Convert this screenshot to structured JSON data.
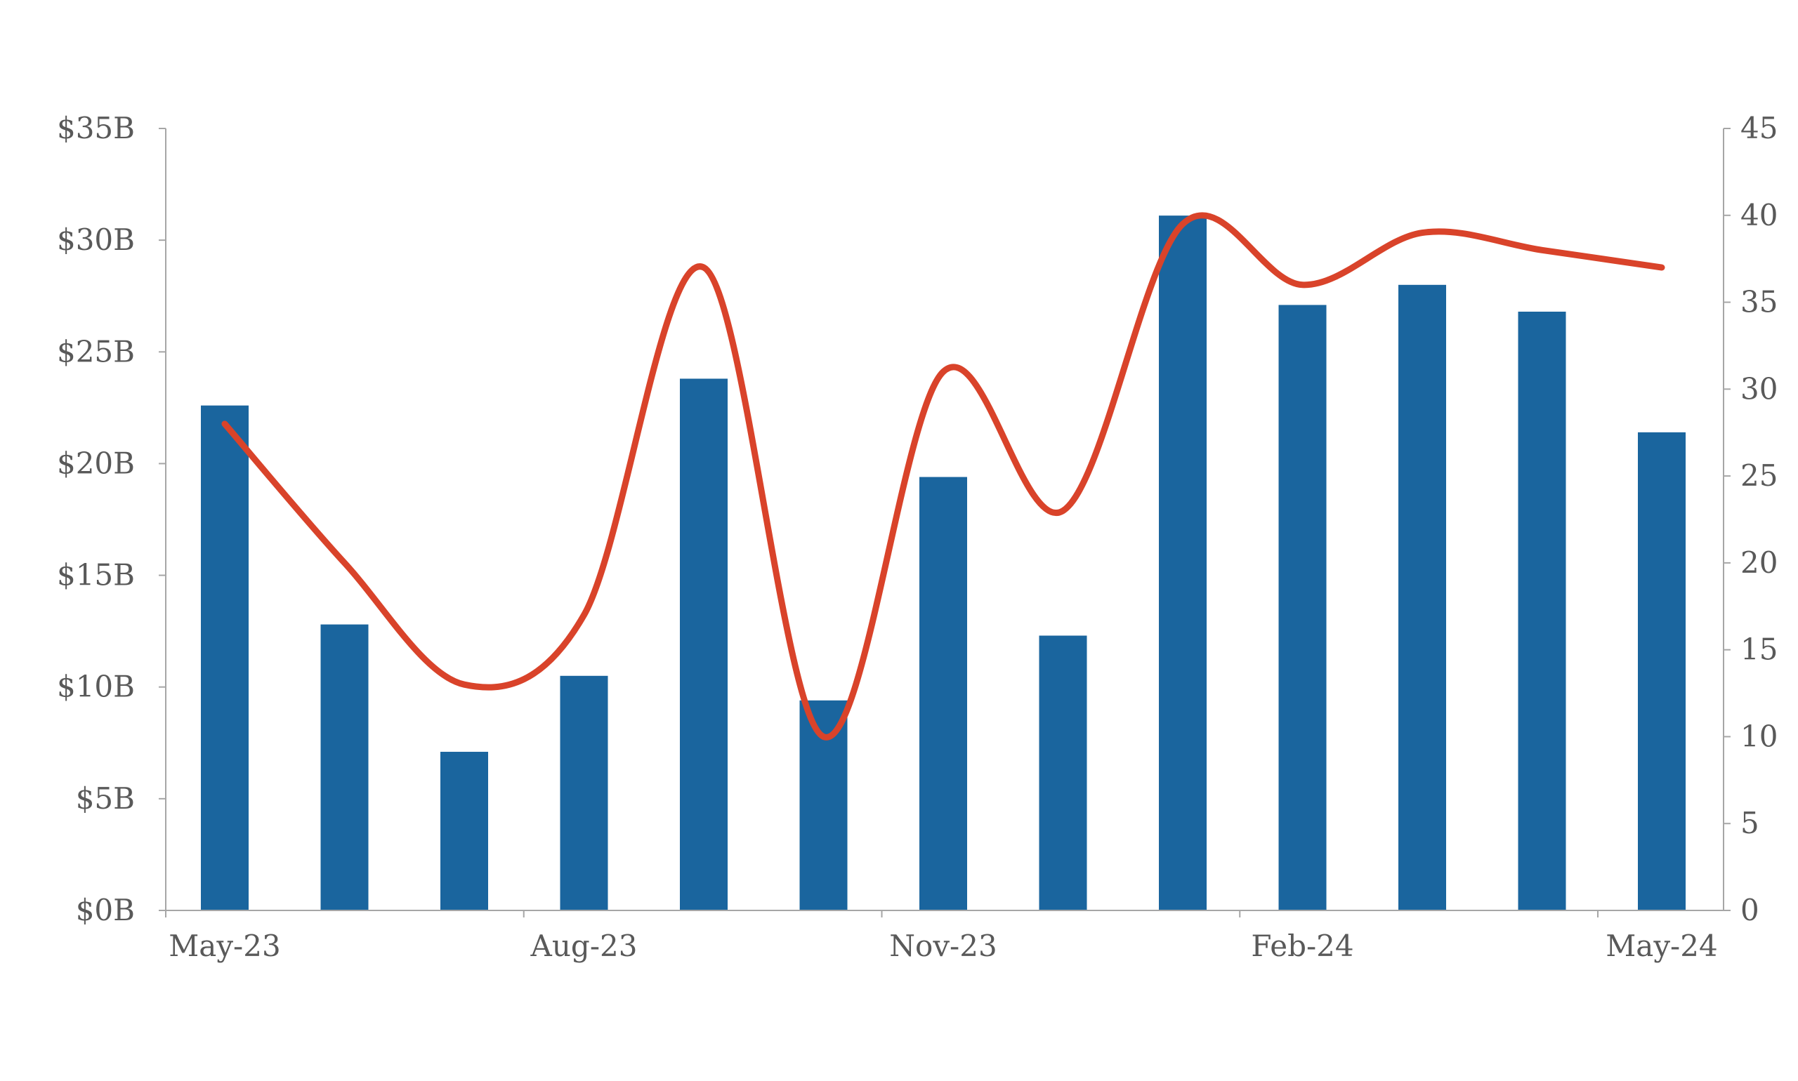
{
  "chart_data": {
    "type": "bar",
    "categories": [
      "May-23",
      "Jun-23",
      "Jul-23",
      "Aug-23",
      "Sep-23",
      "Oct-23",
      "Nov-23",
      "Dec-23",
      "Jan-24",
      "Feb-24",
      "Mar-24",
      "Apr-24",
      "May-24"
    ],
    "x_tick_labels": [
      "May-23",
      "Aug-23",
      "Nov-23",
      "Feb-24",
      "May-24"
    ],
    "series": [
      {
        "type": "bar",
        "axis": "left",
        "color": "#1a659e",
        "values": [
          22.6,
          12.8,
          7.1,
          10.5,
          23.8,
          9.4,
          19.4,
          12.3,
          31.1,
          27.1,
          28.0,
          26.8,
          21.4
        ]
      },
      {
        "type": "line",
        "axis": "right",
        "color": "#d9432a",
        "smooth": true,
        "values": [
          28,
          20,
          13,
          17,
          37,
          10,
          31,
          23,
          39.5,
          36,
          39,
          38,
          37
        ]
      }
    ],
    "y_left": {
      "ylim": [
        0,
        35
      ],
      "ticks": [
        0,
        5,
        10,
        15,
        20,
        25,
        30,
        35
      ],
      "tick_labels": [
        "$0B",
        "$5B",
        "$10B",
        "$15B",
        "$20B",
        "$25B",
        "$30B",
        "$35B"
      ]
    },
    "y_right": {
      "ylim": [
        0,
        45
      ],
      "ticks": [
        0,
        5,
        10,
        15,
        20,
        25,
        30,
        35,
        40,
        45
      ],
      "tick_labels": [
        "0",
        "5",
        "10",
        "15",
        "20",
        "25",
        "30",
        "35",
        "40",
        "45"
      ]
    },
    "grid": false,
    "legend": "none"
  }
}
